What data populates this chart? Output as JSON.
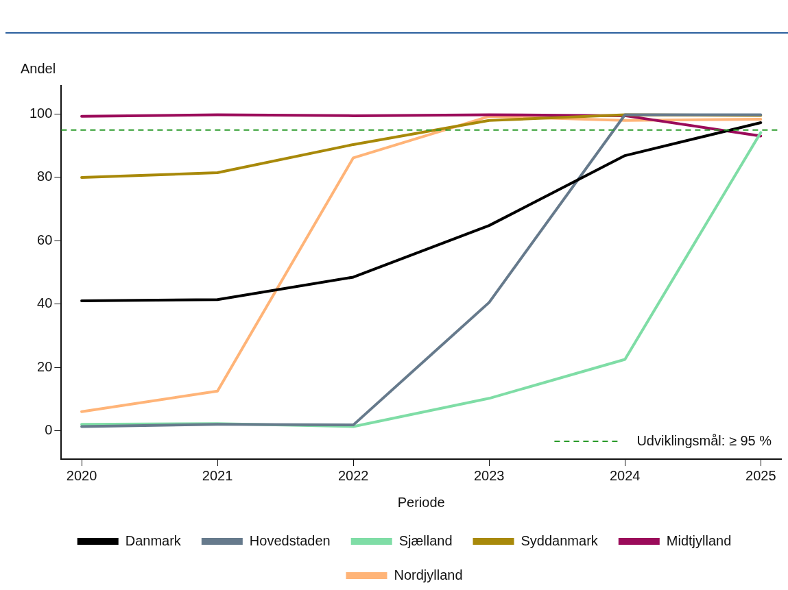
{
  "chart_data": {
    "type": "line",
    "ylabel": "Andel",
    "xlabel": "Periode",
    "x": [
      2020,
      2021,
      2022,
      2023,
      2024,
      2025
    ],
    "xlim": [
      2019.85,
      2025.15
    ],
    "xticks": [
      2020,
      2021,
      2022,
      2023,
      2024,
      2025
    ],
    "ylim": [
      -9,
      109
    ],
    "yticks": [
      0,
      20,
      40,
      60,
      80,
      100
    ],
    "grid": false,
    "legend": "bottom",
    "marker": "none",
    "line_style": "solid",
    "series": [
      {
        "name": "Danmark",
        "color": "#000000",
        "values": [
          41.0,
          41.4,
          48.5,
          64.8,
          86.9,
          97.3
        ]
      },
      {
        "name": "Hovedstaden",
        "color": "#667a8c",
        "values": [
          1.3,
          2.0,
          1.8,
          40.5,
          99.8,
          99.8
        ]
      },
      {
        "name": "Sjælland",
        "color": "#7fdda6",
        "values": [
          2.0,
          2.2,
          1.3,
          10.2,
          22.5,
          94.2
        ]
      },
      {
        "name": "Syddanmark",
        "color": "#a8890a",
        "values": [
          80.0,
          81.5,
          90.4,
          98.0,
          99.8,
          99.6
        ]
      },
      {
        "name": "Midtjylland",
        "color": "#9b0b5a",
        "values": [
          99.3,
          99.8,
          99.5,
          99.8,
          99.5,
          93.1
        ]
      },
      {
        "name": "Nordjylland",
        "color": "#ffb478",
        "values": [
          6.0,
          12.5,
          86.2,
          99.3,
          98.0,
          98.4
        ]
      }
    ],
    "ref_lines": [
      {
        "axis": "y",
        "value": 95,
        "label": "Udviklingsmål: ≥ 95 %",
        "color": "#2a9a2a",
        "line_style": "dashed"
      }
    ]
  }
}
